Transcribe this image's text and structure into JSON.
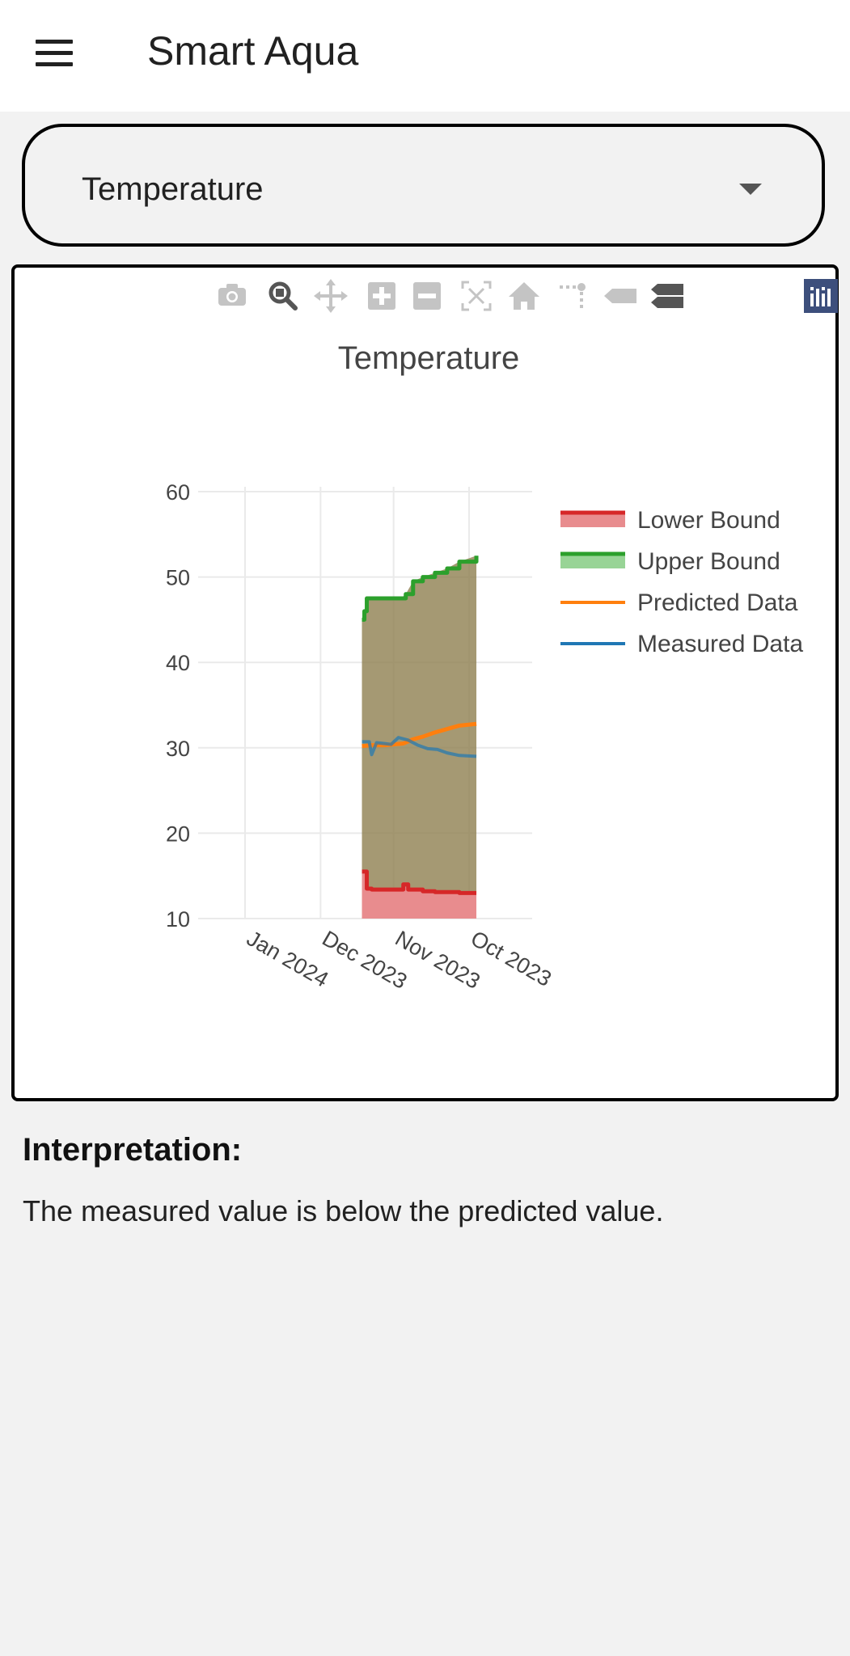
{
  "app": {
    "title": "Smart Aqua",
    "menu_icon": "hamburger-menu-icon"
  },
  "selector": {
    "value": "Temperature",
    "icon": "dropdown-caret-icon"
  },
  "modebar": {
    "buttons": [
      {
        "name": "download-plot-icon"
      },
      {
        "name": "zoom-icon"
      },
      {
        "name": "pan-icon"
      },
      {
        "name": "zoom-in-icon"
      },
      {
        "name": "zoom-out-icon"
      },
      {
        "name": "autoscale-icon"
      },
      {
        "name": "reset-axes-icon"
      },
      {
        "name": "toggle-spike-lines-icon"
      },
      {
        "name": "show-closest-data-icon"
      },
      {
        "name": "compare-data-icon"
      },
      {
        "name": "plotly-logo-icon"
      }
    ]
  },
  "chart_data": {
    "type": "line",
    "title": "Temperature",
    "xlabel": "",
    "ylabel": "",
    "x_reversed": true,
    "x_tick_labels": [
      "Jan 2024",
      "Dec 2023",
      "Nov 2023",
      "Oct 2023"
    ],
    "x_tick_dates": [
      "2024-01-01",
      "2023-12-01",
      "2023-11-01",
      "2023-10-01"
    ],
    "y_ticks": [
      10,
      20,
      30,
      40,
      50,
      60
    ],
    "ylim": [
      10,
      60
    ],
    "grid": true,
    "legend_position": "right",
    "series": [
      {
        "name": "Lower Bound",
        "color": "#d62728",
        "fill": "#e88c8e",
        "x": [
          "2023-11-14",
          "2023-11-13",
          "2023-11-12",
          "2023-11-10",
          "2023-11-07",
          "2023-11-04",
          "2023-11-01",
          "2023-10-29",
          "2023-10-28",
          "2023-10-26",
          "2023-10-20",
          "2023-10-15",
          "2023-10-10",
          "2023-10-05",
          "2023-09-28"
        ],
        "y": [
          15.5,
          15.5,
          13.5,
          13.4,
          13.4,
          13.4,
          13.4,
          13.4,
          14.0,
          13.4,
          13.2,
          13.1,
          13.1,
          13.0,
          13.0
        ]
      },
      {
        "name": "Upper Bound",
        "color": "#2ca02c",
        "fill": "#98d496",
        "x": [
          "2023-11-14",
          "2023-11-13",
          "2023-11-12",
          "2023-11-10",
          "2023-11-07",
          "2023-11-04",
          "2023-11-01",
          "2023-10-29",
          "2023-10-27",
          "2023-10-24",
          "2023-10-20",
          "2023-10-15",
          "2023-10-10",
          "2023-10-05",
          "2023-09-28"
        ],
        "y": [
          45.0,
          46.0,
          47.5,
          47.5,
          47.5,
          47.5,
          47.5,
          47.5,
          48.0,
          49.5,
          50.0,
          50.5,
          51.0,
          51.8,
          52.5
        ]
      },
      {
        "name": "Predicted Data",
        "color": "#ff7f0e",
        "x": [
          "2023-11-14",
          "2023-11-10",
          "2023-11-05",
          "2023-11-01",
          "2023-10-28",
          "2023-10-24",
          "2023-10-20",
          "2023-10-15",
          "2023-10-10",
          "2023-10-05",
          "2023-09-28"
        ],
        "y": [
          30.2,
          30.3,
          30.3,
          30.4,
          30.5,
          31.0,
          31.3,
          31.8,
          32.2,
          32.6,
          32.8
        ]
      },
      {
        "name": "Measured Data",
        "color": "#1f77b4",
        "x": [
          "2023-11-14",
          "2023-11-11",
          "2023-11-10",
          "2023-11-08",
          "2023-11-05",
          "2023-11-02",
          "2023-10-30",
          "2023-10-26",
          "2023-10-22",
          "2023-10-18",
          "2023-10-14",
          "2023-10-10",
          "2023-10-05",
          "2023-09-28"
        ],
        "y": [
          30.7,
          30.7,
          29.2,
          30.6,
          30.5,
          30.4,
          31.2,
          30.9,
          30.3,
          29.9,
          29.8,
          29.4,
          29.1,
          29.0
        ]
      }
    ]
  },
  "interpretation": {
    "heading": "Interpretation:",
    "text": "The measured value is below the predicted value."
  }
}
